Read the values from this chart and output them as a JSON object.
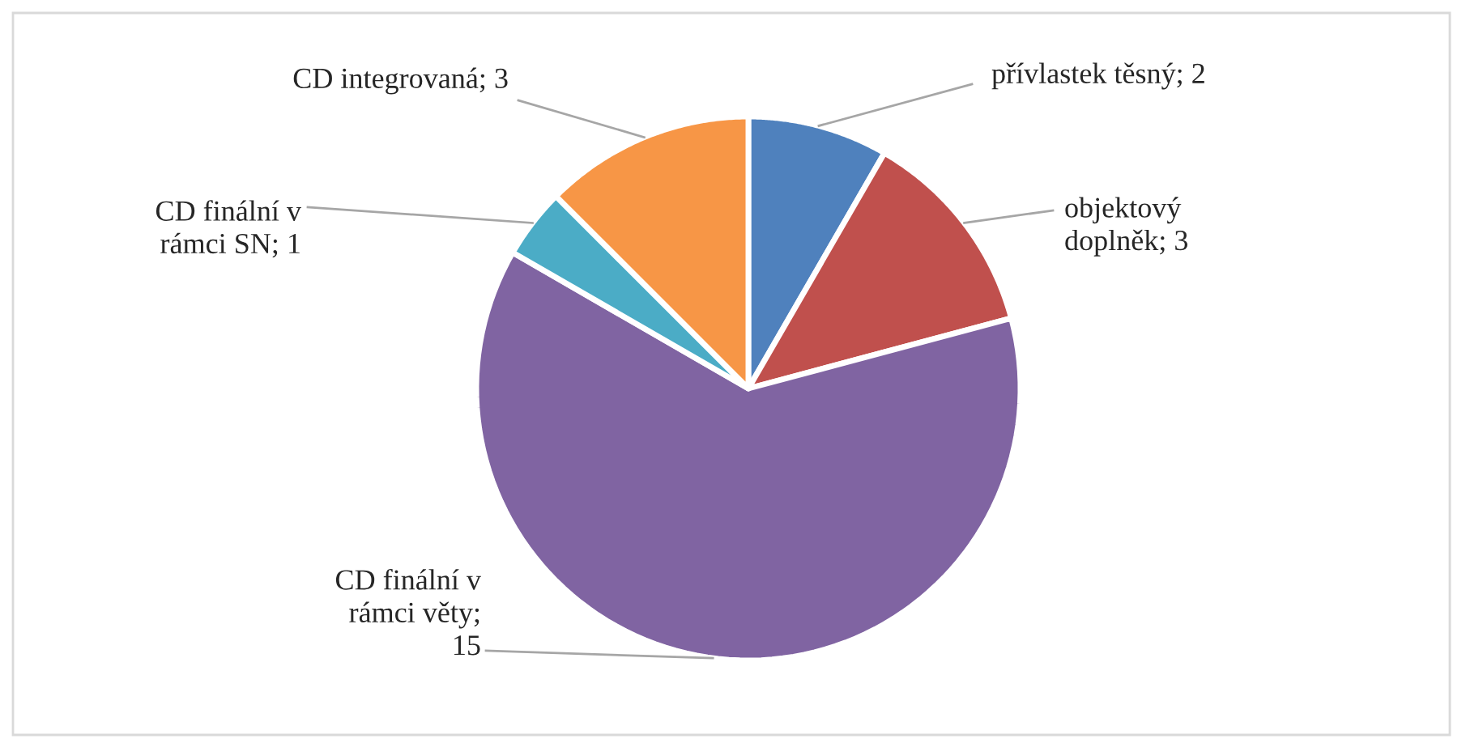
{
  "chart_data": {
    "type": "pie",
    "categories": [
      "přívlastek těsný; 2",
      "objektový doplněk; 3",
      "CD finální v rámci věty; 15",
      "CD finální v rámci SN; 1",
      "CD integrovaná; 3"
    ],
    "values": [
      2,
      3,
      15,
      1,
      3
    ],
    "colors": [
      "#4f81bd",
      "#c0504d",
      "#8064a2",
      "#4bacc6",
      "#f79646"
    ],
    "legend": false
  }
}
